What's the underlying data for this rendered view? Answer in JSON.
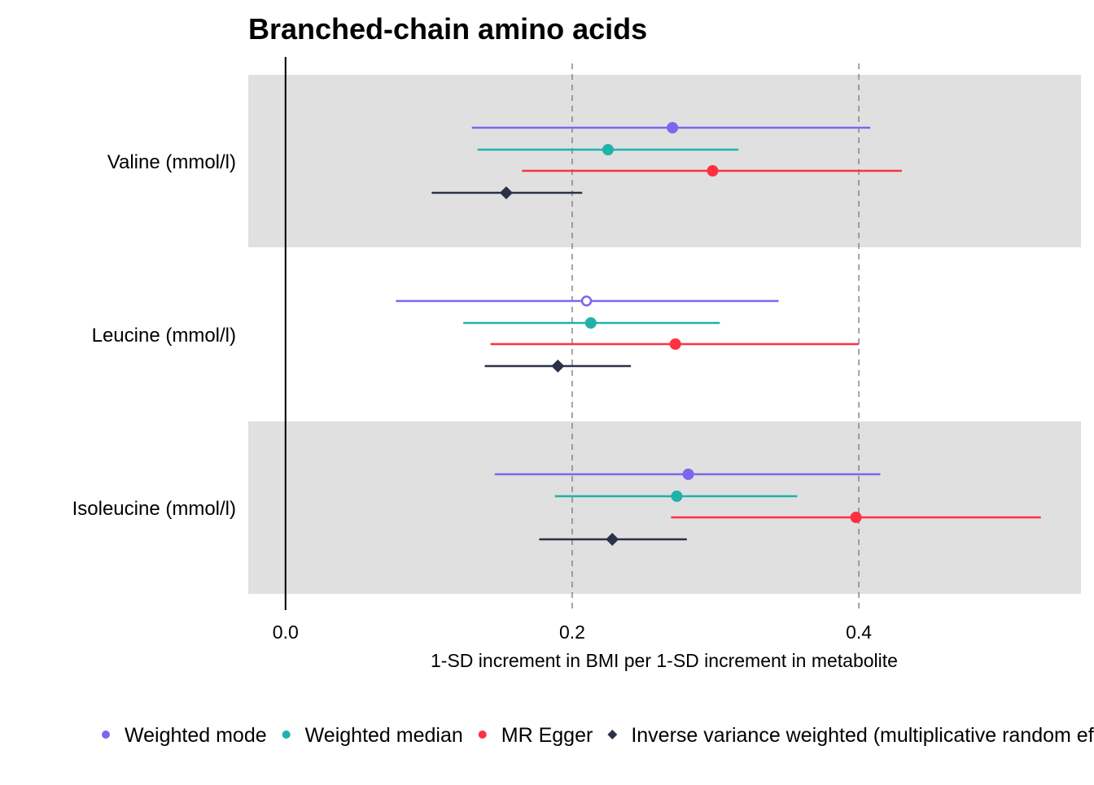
{
  "chart_data": {
    "type": "forest",
    "title": "Branched-chain amino acids",
    "xlabel": "1-SD increment in BMI per 1-SD increment in metabolite",
    "ylabel": "",
    "xlim": [
      -0.026,
      0.555
    ],
    "xticks": [
      0.0,
      0.2,
      0.4
    ],
    "xtick_labels": [
      "0.0",
      "0.2",
      "0.4"
    ],
    "reference_lines": [
      0.2,
      0.4
    ],
    "zero_line": 0.0,
    "legend_position": "bottom",
    "categories": [
      "Valine (mmol/l)",
      "Leucine (mmol/l)",
      "Isoleucine (mmol/l)"
    ],
    "shaded_bands": [
      true,
      false,
      true
    ],
    "series": [
      {
        "name": "Weighted mode",
        "color": "#7B68EE",
        "marker": "circle",
        "points": [
          {
            "estimate": 0.27,
            "lower": 0.13,
            "upper": 0.408,
            "open": false
          },
          {
            "estimate": 0.21,
            "lower": 0.077,
            "upper": 0.344,
            "open": true
          },
          {
            "estimate": 0.281,
            "lower": 0.146,
            "upper": 0.415,
            "open": false
          }
        ]
      },
      {
        "name": "Weighted median",
        "color": "#20B2AA",
        "marker": "circle",
        "points": [
          {
            "estimate": 0.225,
            "lower": 0.134,
            "upper": 0.316,
            "open": false
          },
          {
            "estimate": 0.213,
            "lower": 0.124,
            "upper": 0.303,
            "open": false
          },
          {
            "estimate": 0.273,
            "lower": 0.188,
            "upper": 0.357,
            "open": false
          }
        ]
      },
      {
        "name": "MR Egger",
        "color": "#FF3040",
        "marker": "circle",
        "points": [
          {
            "estimate": 0.298,
            "lower": 0.165,
            "upper": 0.43,
            "open": false
          },
          {
            "estimate": 0.272,
            "lower": 0.143,
            "upper": 0.4,
            "open": false
          },
          {
            "estimate": 0.398,
            "lower": 0.269,
            "upper": 0.527,
            "open": false
          }
        ]
      },
      {
        "name": "Inverse variance weighted (multiplicative random effects)",
        "color": "#2B3148",
        "marker": "diamond",
        "points": [
          {
            "estimate": 0.154,
            "lower": 0.102,
            "upper": 0.207,
            "open": false
          },
          {
            "estimate": 0.19,
            "lower": 0.139,
            "upper": 0.241,
            "open": false
          },
          {
            "estimate": 0.228,
            "lower": 0.177,
            "upper": 0.28,
            "open": false
          }
        ]
      }
    ]
  }
}
